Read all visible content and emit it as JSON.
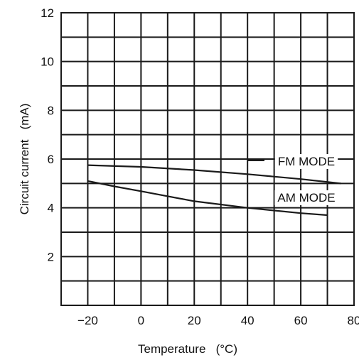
{
  "chart_data": {
    "type": "line",
    "title": "",
    "xlabel": "Temperature   (°C)",
    "ylabel": "Circuit current   (mA)",
    "xlim": [
      -30,
      80
    ],
    "ylim": [
      0,
      12
    ],
    "x_ticks": [
      -20,
      0,
      20,
      40,
      60,
      80
    ],
    "x_tick_labels": [
      "−20",
      "0",
      "20",
      "40",
      "60",
      "80"
    ],
    "y_ticks": [
      2,
      4,
      6,
      8,
      10,
      12
    ],
    "y_tick_labels": [
      "2",
      "4",
      "6",
      "8",
      "10",
      "12"
    ],
    "grid": true,
    "legend": "none",
    "series": [
      {
        "name": "FM MODE",
        "x": [
          -20,
          0,
          20,
          40,
          60,
          75
        ],
        "y": [
          5.75,
          5.68,
          5.55,
          5.38,
          5.18,
          5.0
        ]
      },
      {
        "name": "AM MODE",
        "x": [
          -20,
          -10,
          0,
          20,
          40,
          60,
          70
        ],
        "y": [
          5.1,
          4.88,
          4.68,
          4.27,
          4.0,
          3.78,
          3.7
        ]
      }
    ],
    "colors": {
      "line": "#1a1a1a",
      "grid": "#1a1a1a",
      "background": "#ffffff"
    }
  }
}
